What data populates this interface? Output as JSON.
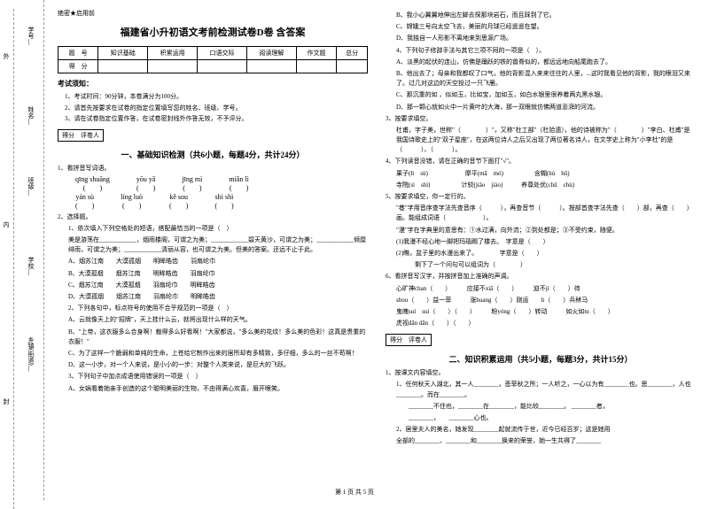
{
  "binding": {
    "labels": [
      "学号__",
      "姓名__",
      "班级__",
      "学校__",
      "乡镇(街道)__"
    ],
    "inner": [
      "外",
      "内",
      "封"
    ],
    "vert": [
      "线",
      "题",
      "答"
    ]
  },
  "secret": "绝密★启用前",
  "title": "福建省小升初语文考前检测试卷D卷 含答案",
  "scoreTable": {
    "headers": [
      "题　号",
      "知识基础",
      "积累运用",
      "口语交际",
      "阅读理解",
      "作文题",
      "总分"
    ],
    "row2": "得　分"
  },
  "noticeHead": "考试须知：",
  "notices": [
    "1、考试时间：90分钟，本卷满分为100分。",
    "2、请首先按要求在试卷的指定位置填写您的姓名、班级、学号。",
    "3、请在试卷指定位置作答，在试卷密封线外作答无效，不予评分。"
  ],
  "scoreBox": "得分　评卷人",
  "section1Title": "一、基础知识检测（共6小题，每题4分，共计24分）",
  "q1": "1、看拼音写词语。",
  "pinyin": [
    {
      "py": "qīng shuāng",
      "br": "(　　)"
    },
    {
      "py": "yōu yǎ",
      "br": "(　　)"
    },
    {
      "py": "jīng mì",
      "br": "(　　)"
    },
    {
      "py": "miǎn lì",
      "br": "(　　)"
    }
  ],
  "pinyin2": [
    {
      "py": "yán sù",
      "br": "(　　)"
    },
    {
      "py": "líng luò",
      "br": "(　　)"
    },
    {
      "py": "kě sou",
      "br": "(　　)"
    },
    {
      "py": "shì shì",
      "br": "(　　)"
    }
  ],
  "q2": "2、选择题。",
  "q2_1": "1、依次填入下列空格处的短语，搭配最恰当的一项是（　）",
  "q2_1t": "美是游荡在____________，烟雨楼阁，可谓之为美；____________碧天黄沙，可谓之为美；____________倾糜绯雨，可谓之为美；____________清丽从容，也可谓之为美。但美的答案。还远不止于此。",
  "q2_1o": [
    "A、烟苏江南　　大漠孤烟　　明眸皓齿　　羽扇纶巾",
    "B、大漠孤烟　　烟苏江南　　明眸皓齿　　羽扇纶巾",
    "C、烟苏江南　　大漠孤烟　　羽扇纶巾　　明眸皓齿",
    "D、大漠孤烟　　烟苏江南　　羽扇纶巾　　明眸皓齿"
  ],
  "q2_2": "2、下列各句中，标点符号的使用不合乎规范的一项是（　）",
  "q2_2o": [
    "A、云就像天上的\"招牌\"，天上挂什么云，就将出现什么样的天气。",
    "B、\"上帝，这衣服多么合身啊！裁得多么好看啊！\"大家都说，\"多么美的花纹！多么美的色彩！这真是贵重的衣服！\"",
    "C、为了这样一个脆弱和单纯的生命，上苍给它制作出来的居所却有多精致，多仔细，多么的一丝不苟啊！",
    "D、这一小步，对一个人来说，是小小的一步：对整个人类来说，是巨大的飞跃。"
  ],
  "q2_3": "3、下列句子中加点成语使用错误的一项是（　）",
  "q2_3o": [
    "A、女娲看着她亲手创造的这个聪明美丽的生物，不由得满心欢喜，眉开眼笑。",
    "B、我小心翼翼地伸出左脚去探那块岩石，而且踩到了它。",
    "C、嫦娥三号向太空飞去，美丽的月球已经遥遥在望。",
    "D、我独自一人形影不离地来到思源广场。"
  ],
  "q2_4": "4、下列句子修辞手法与其它三项不同的一项是（　）。",
  "q2_4o": [
    "A、淡黑的起伏的连山，仿佛是踊跃的铁的兽脊似的，都远远地向船尾跑去了。",
    "B、他出去了；母亲和我都叹了口气，他的背影混入来来往往的人里，...这时我看见他的背影，我的眼泪又来了。过几对这边的天空投过一只飞雁。",
    "C、那沉重的如 ，似如玉，比如宝，加如玉，如白水银里很养着两丸黑水银。",
    "D、那一颗心就如火中一片黄叶的大海，那一双眼就仿佛两道澎湃的河流。"
  ],
  "q3": "3、按要求填空。",
  "q3t": "杜甫，字子美，世称\"（　　　　）\"，又称\"杜工部\"（杜拾遗），他的诗被称为\"（　　　　）\"李白、杜甫\"是我国诗歌史上的\"双子星座\"，在这两位诗人之后又出现了两位著名诗人，在文学史上称为\"小李杜\"的是（　　　）、（　　　）。",
  "q4": "4、下列读音没错，请在正确的音节下面打\"√\"。",
  "q4items": [
    "果子(lì　sù)　　　　　　摩平(mā　mó)　　　　　含糊(hú　hū)",
    "寺院(sì　shì)　　　　　计较(jiǎo　jiào)　　　养尊处优(chǔ　chù)"
  ],
  "q5": "5、按要求填空，你一定行的。",
  "q5t": "\"巷\"字用音序查字法先查音序（　　　），再查音节（　　　）。按部首查字法先查（　　）部，再查（　　）画。能组成词语（　　　　　　）。",
  "q5t2": "\"漫\"字在字典里的意思有：①水过满，向外流；②到处都是；③不受约束，随便。",
  "q5t3": "(1)我漫不经心地一脚把玛瑙踢了楼去。　字意是（　　）",
  "q5t4": "(2)瞧，盆子里的水漫出来了。　　　　字意是（　　）",
  "q5t5": "　　　剩下了一个问句可以组词为（　　　　）",
  "q6": "6、看拼音写汉字，并按拼音加上准确的声调。",
  "q6r1": "心旷神chan（　　）　　　应接不xiā（　　）　　　迫不jí（　　）待",
  "q6r2": "shou（　　）益一菲　　　涨huang（　　）刚运　　li（　　）兵秫马",
  "q6r3": "鬼魄suí　suí（　　）（　　）　　　粉yóng（　　）转动　　　如火如tu（　　）",
  "q6r4": "虎视dān dān（　　）（　　）",
  "section2Title": "二、知识积累运用（共5小题，每题3分，共计15分）",
  "q2_1h": "1、按课文内容填空。",
  "q2_1t1": "1、任何秋天入湖北，其一人________，悲菲秋之所；一人听之，一心以为有________也。思________，人也________。而在________。",
  "q2_1t2": "　　________不住也，________在________，能比较________。 ________者，",
  "q2_1t3": "　　________，　　________心也。",
  "q2_1t4": "2、居里夫人的美名，她发现________起就流传于世，近今已经百岁；这是她用",
  "q2_1t5": "全部的________、________和________换来的荣誉，她一生共得了________",
  "footer": "第 1 页 共 5 页"
}
